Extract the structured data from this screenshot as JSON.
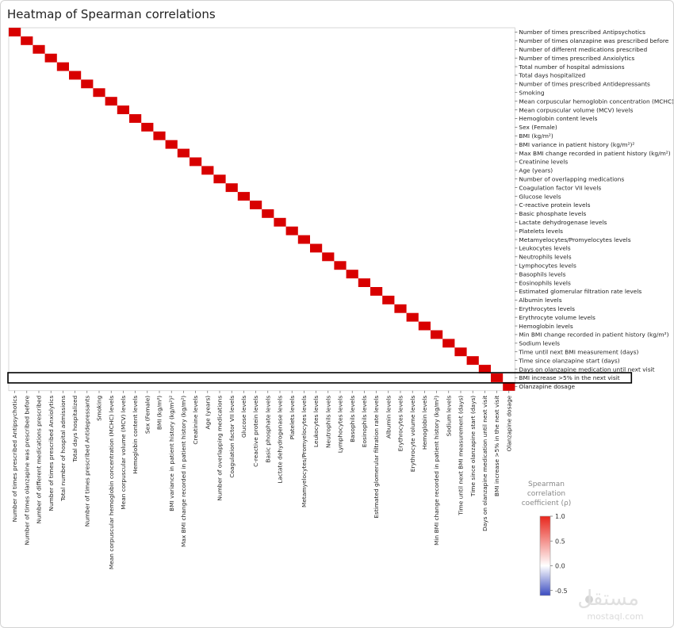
{
  "chart_data": {
    "type": "heatmap",
    "title": "Heatmap of Spearman correlations",
    "colorbar": {
      "label_lines": [
        "Spearman",
        "correlation",
        "coefficient (ρ)"
      ],
      "range": [
        -0.6,
        1.0
      ],
      "ticks": [
        1.0,
        0.5,
        0.0,
        -0.5
      ],
      "tick_labels": [
        "1.0",
        "0.5",
        "0.0",
        "-0.5"
      ],
      "colors": {
        "negative": "#3b4cc0",
        "zero": "#ffffff",
        "positive": "#e8261c"
      }
    },
    "variables": [
      "Number of times prescribed Antipsychotics",
      "Number of times olanzapine was prescribed before",
      "Number of different medications prescribed",
      "Number of times prescribed Anxiolytics",
      "Total number of hospital admissions",
      "Total days hospitalized",
      "Number of times prescribed Antidepressants",
      "Smoking",
      "Mean corpuscular hemoglobin concentration (MCHC) levels",
      "Mean corpuscular volume (MCV) levels",
      "Hemoglobin content levels",
      "Sex (Female)",
      "BMI (kg/m²)",
      "BMI variance in patient history (kg/m²)²",
      "Max BMI change recorded in patient history (kg/m²)",
      "Creatinine levels",
      "Age (years)",
      "Number of overlapping medications",
      "Coagulation factor VII levels",
      "Glucose levels",
      "C-reactive protein levels",
      "Basic phosphate levels",
      "Lactate dehydrogenase levels",
      "Platelets levels",
      "Metamyelocytes/Promyelocytes levels",
      "Leukocytes levels",
      "Neutrophils levels",
      "Lymphocytes levels",
      "Basophils levels",
      "Eosinophils levels",
      "Estimated glomerular filtration rate levels",
      "Albumin levels",
      "Erythrocytes levels",
      "Erythrocyte volume levels",
      "Hemoglobin levels",
      "Min BMI change recorded in patient history (kg/m²)",
      "Sodium levels",
      "Time until next BMI measurement (days)",
      "Time since olanzapine start (days)",
      "Days on olanzapine medication until next visit",
      "BMI increase >5% in the next visit",
      "Olanzapine dosage"
    ],
    "highlighted_row": "BMI increase >5% in the next visit",
    "diagonal": 1.0,
    "matrix": null
  },
  "watermark": {
    "brand": "مستقل",
    "site": "mostaql.com"
  }
}
